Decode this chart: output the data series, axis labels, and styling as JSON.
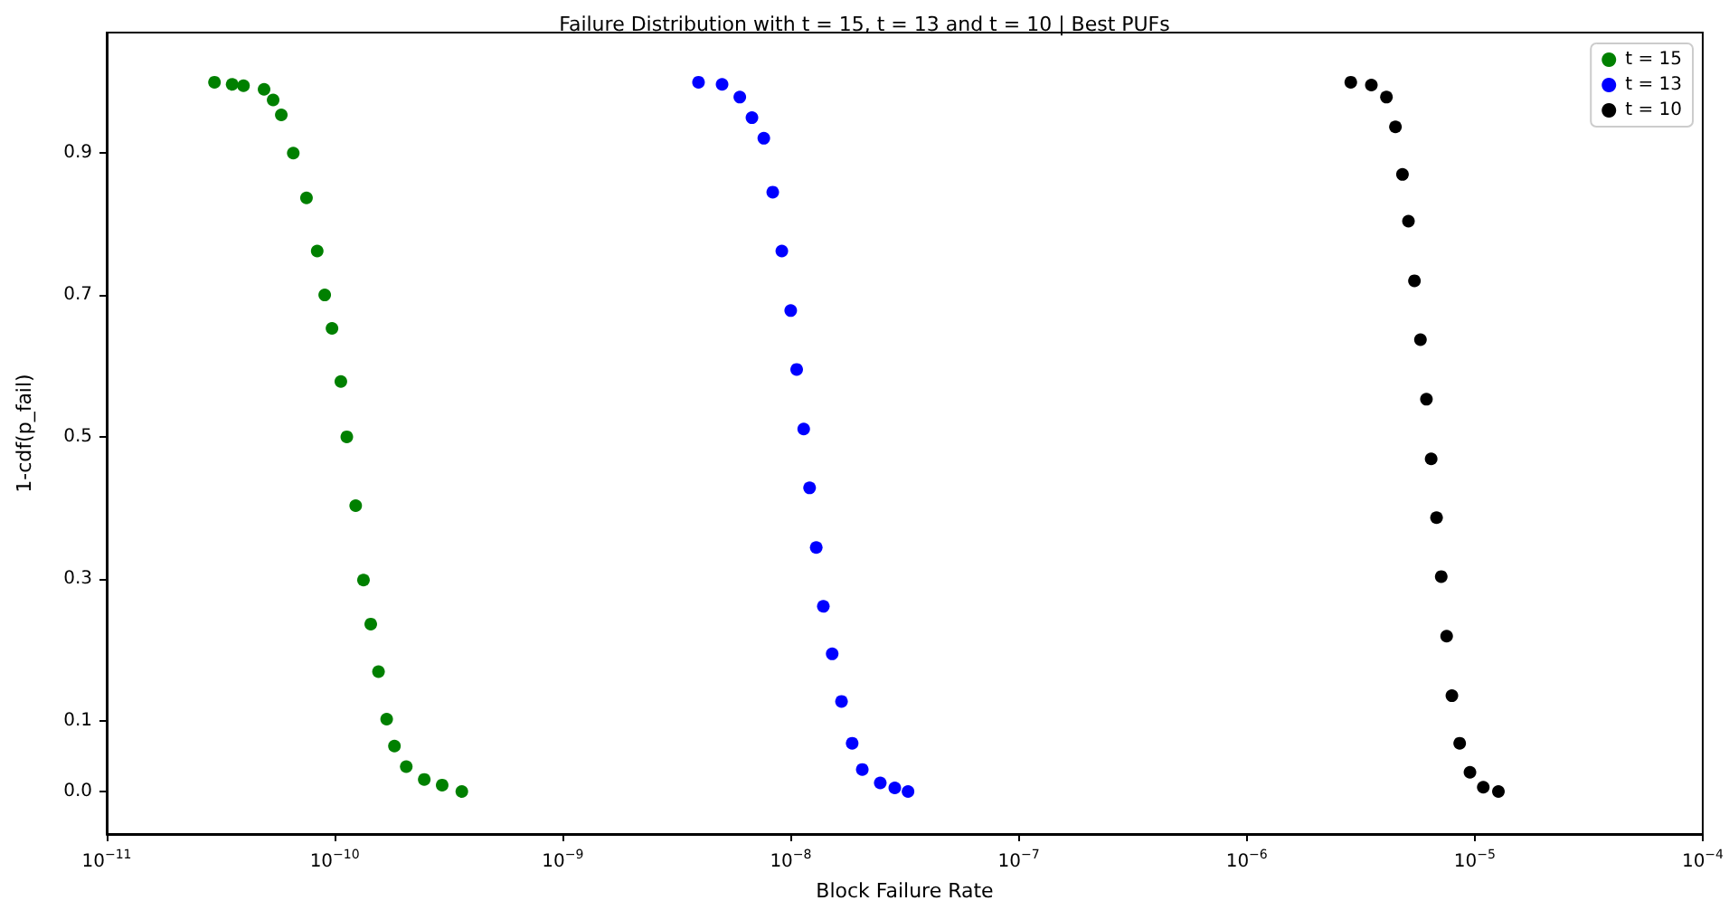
{
  "chart_data": {
    "type": "scatter",
    "title": "Failure Distribution with t = 15, t = 13 and t = 10 | Best PUFs",
    "xlabel": "Block Failure Rate",
    "ylabel": "1-cdf(p_fail)",
    "log": "x",
    "marker": "circle",
    "legend": "top right",
    "grid": false,
    "xlim": [
      1e-11,
      0.0001
    ],
    "xticks": [
      {
        "value": 1e-11,
        "label": "10$^{−11}$"
      },
      {
        "value": 1e-10,
        "label": "10$^{−10}$"
      },
      {
        "value": 1e-09,
        "label": "10$^{−9}$"
      },
      {
        "value": 1e-08,
        "label": "10$^{−8}$"
      },
      {
        "value": 1e-07,
        "label": "10$^{−7}$"
      },
      {
        "value": 1e-06,
        "label": "10$^{−6}$"
      },
      {
        "value": 1e-05,
        "label": "10$^{−5}$"
      },
      {
        "value": 0.0001,
        "label": "10$^{−4}$"
      }
    ],
    "ylim": [
      -0.06,
      1.07
    ],
    "yticks": [
      {
        "value": 0,
        "label": "0.0"
      },
      {
        "value": 0.1,
        "label": "0.1"
      },
      {
        "value": 0.3,
        "label": "0.3"
      },
      {
        "value": 0.5,
        "label": "0.5"
      },
      {
        "value": 0.7,
        "label": "0.7"
      },
      {
        "value": 0.9,
        "label": "0.9"
      }
    ],
    "series": [
      {
        "name": "t = 15",
        "color": "#008000",
        "x": [
          2.97e-11,
          3.55e-11,
          3.98e-11,
          4.9e-11,
          5.37e-11,
          5.83e-11,
          6.58e-11,
          7.52e-11,
          8.38e-11,
          9.04e-11,
          9.73e-11,
          1.064e-10,
          1.13e-10,
          1.236e-10,
          1.337e-10,
          1.439e-10,
          1.556e-10,
          1.69e-10,
          1.828e-10,
          2.06e-10,
          2.47e-10,
          2.96e-10,
          3.61e-10
        ],
        "values": [
          1.0,
          0.997,
          0.995,
          0.99,
          0.975,
          0.954,
          0.9,
          0.837,
          0.762,
          0.7,
          0.653,
          0.578,
          0.5,
          0.403,
          0.298,
          0.236,
          0.169,
          0.102,
          0.064,
          0.035,
          0.017,
          0.009,
          0.0
        ]
      },
      {
        "name": "t = 13",
        "color": "#0000ff",
        "x": [
          3.94e-09,
          5e-09,
          5.98e-09,
          6.76e-09,
          7.62e-09,
          8.34e-09,
          9.14e-09,
          1e-08,
          1.062e-08,
          1.14e-08,
          1.21e-08,
          1.294e-08,
          1.39e-08,
          1.52e-08,
          1.67e-08,
          1.86e-08,
          2.06e-08,
          2.47e-08,
          2.86e-08,
          3.27e-08
        ],
        "values": [
          1.0,
          0.997,
          0.979,
          0.95,
          0.921,
          0.845,
          0.762,
          0.678,
          0.595,
          0.511,
          0.428,
          0.344,
          0.261,
          0.194,
          0.127,
          0.068,
          0.031,
          0.012,
          0.005,
          0.0
        ]
      },
      {
        "name": "t = 10",
        "color": "#000000",
        "x": [
          2.86e-06,
          3.52e-06,
          4.1e-06,
          4.49e-06,
          4.82e-06,
          5.12e-06,
          5.44e-06,
          5.78e-06,
          6.14e-06,
          6.44e-06,
          6.8e-06,
          7.13e-06,
          7.53e-06,
          7.94e-06,
          8.59e-06,
          9.53e-06,
          1.09e-05,
          1.27e-05
        ],
        "values": [
          1.0,
          0.996,
          0.979,
          0.937,
          0.87,
          0.804,
          0.72,
          0.637,
          0.553,
          0.469,
          0.386,
          0.303,
          0.219,
          0.135,
          0.068,
          0.027,
          0.006,
          0.0
        ]
      }
    ]
  }
}
